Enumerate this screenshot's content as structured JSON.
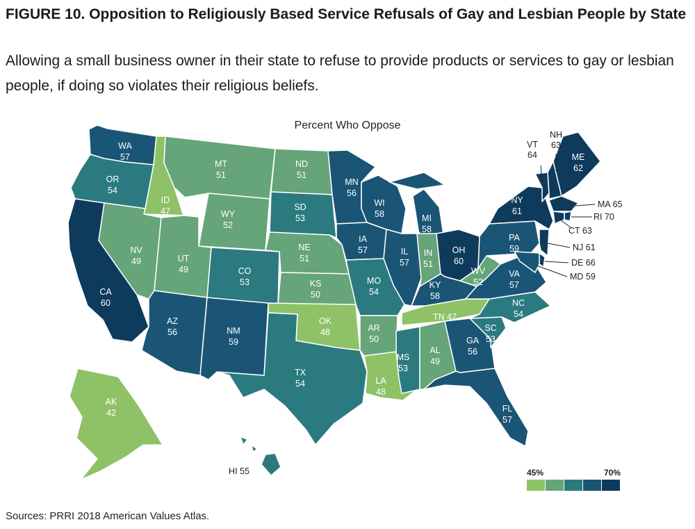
{
  "title": "FIGURE 10.  Opposition to Religiously Based Service Refusals of Gay and Lesbian People by State",
  "subtitle": "Allowing a small business owner in their state to refuse to provide products or services to gay or lesbian people, if doing so violates their religious beliefs.",
  "map_label": "Percent Who Oppose",
  "source": "Sources: PRRI 2018 American Values Atlas.",
  "legend": {
    "min_label": "45%",
    "max_label": "70%",
    "colors": [
      "#8fc266",
      "#66a479",
      "#2b7a80",
      "#1a5575",
      "#0e3a5c"
    ]
  },
  "chart_data": {
    "type": "choropleth",
    "value_unit": "percent who oppose",
    "states": [
      {
        "abbr": "WA",
        "value": 57
      },
      {
        "abbr": "OR",
        "value": 54
      },
      {
        "abbr": "CA",
        "value": 60
      },
      {
        "abbr": "ID",
        "value": 47
      },
      {
        "abbr": "NV",
        "value": 49
      },
      {
        "abbr": "MT",
        "value": 51
      },
      {
        "abbr": "WY",
        "value": 52
      },
      {
        "abbr": "UT",
        "value": 49
      },
      {
        "abbr": "AZ",
        "value": 56
      },
      {
        "abbr": "CO",
        "value": 53
      },
      {
        "abbr": "NM",
        "value": 59
      },
      {
        "abbr": "ND",
        "value": 51
      },
      {
        "abbr": "SD",
        "value": 53
      },
      {
        "abbr": "NE",
        "value": 51
      },
      {
        "abbr": "KS",
        "value": 50
      },
      {
        "abbr": "OK",
        "value": 48
      },
      {
        "abbr": "TX",
        "value": 54
      },
      {
        "abbr": "MN",
        "value": 56
      },
      {
        "abbr": "IA",
        "value": 57
      },
      {
        "abbr": "MO",
        "value": 54
      },
      {
        "abbr": "AR",
        "value": 50
      },
      {
        "abbr": "LA",
        "value": 48
      },
      {
        "abbr": "WI",
        "value": 58
      },
      {
        "abbr": "IL",
        "value": 57
      },
      {
        "abbr": "MI",
        "value": 58
      },
      {
        "abbr": "IN",
        "value": 51
      },
      {
        "abbr": "OH",
        "value": 60
      },
      {
        "abbr": "KY",
        "value": 58
      },
      {
        "abbr": "TN",
        "value": 47
      },
      {
        "abbr": "MS",
        "value": 53
      },
      {
        "abbr": "AL",
        "value": 49
      },
      {
        "abbr": "GA",
        "value": 56
      },
      {
        "abbr": "FL",
        "value": 57
      },
      {
        "abbr": "SC",
        "value": 53
      },
      {
        "abbr": "NC",
        "value": 54
      },
      {
        "abbr": "VA",
        "value": 57
      },
      {
        "abbr": "WV",
        "value": 52
      },
      {
        "abbr": "PA",
        "value": 59
      },
      {
        "abbr": "NY",
        "value": 61
      },
      {
        "abbr": "VT",
        "value": 64
      },
      {
        "abbr": "NH",
        "value": 63
      },
      {
        "abbr": "ME",
        "value": 62
      },
      {
        "abbr": "MA",
        "value": 65
      },
      {
        "abbr": "RI",
        "value": 70
      },
      {
        "abbr": "CT",
        "value": 63
      },
      {
        "abbr": "NJ",
        "value": 61
      },
      {
        "abbr": "DE",
        "value": 66
      },
      {
        "abbr": "MD",
        "value": 59
      },
      {
        "abbr": "AK",
        "value": 42
      },
      {
        "abbr": "HI",
        "value": 55
      }
    ]
  }
}
